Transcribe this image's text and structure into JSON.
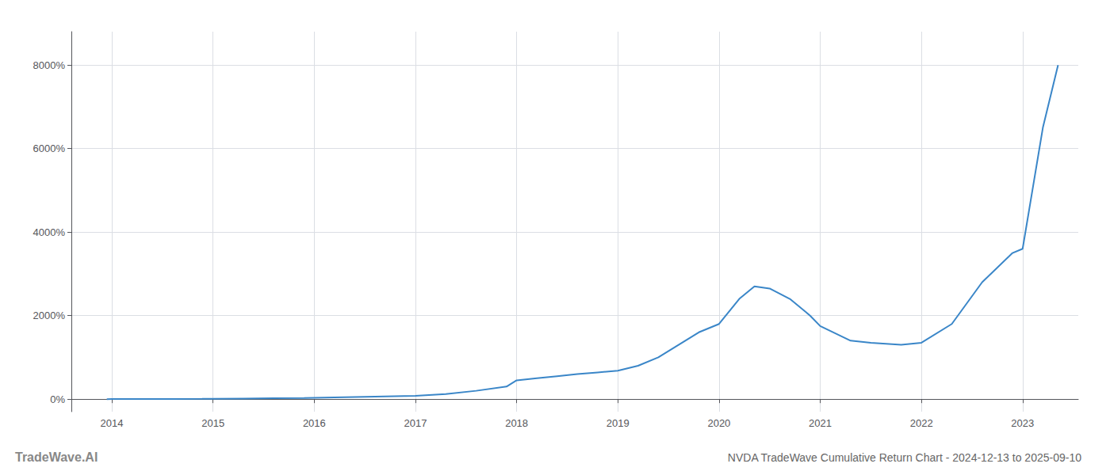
{
  "chart_data": {
    "type": "line",
    "title": "NVDA TradeWave Cumulative Return Chart - 2024-12-13 to 2025-09-10",
    "annotations": [
      "TradeWave.AI"
    ],
    "color": "#3a86c8",
    "grid": true,
    "x": [
      2013.95,
      2014.0,
      2014.3,
      2014.6,
      2014.9,
      2015.0,
      2015.3,
      2015.6,
      2015.9,
      2016.0,
      2016.3,
      2016.6,
      2016.9,
      2017.0,
      2017.3,
      2017.6,
      2017.9,
      2018.0,
      2018.2,
      2018.4,
      2018.6,
      2018.8,
      2019.0,
      2019.2,
      2019.4,
      2019.6,
      2019.8,
      2020.0,
      2020.2,
      2020.35,
      2020.5,
      2020.7,
      2020.9,
      2021.0,
      2021.3,
      2021.5,
      2021.8,
      2022.0,
      2022.3,
      2022.6,
      2022.9,
      2023.0,
      2023.2,
      2023.35
    ],
    "values": [
      0,
      1,
      3,
      5,
      8,
      10,
      15,
      20,
      25,
      30,
      45,
      60,
      75,
      80,
      120,
      200,
      300,
      450,
      500,
      550,
      600,
      640,
      680,
      800,
      1000,
      1300,
      1600,
      1800,
      2400,
      2700,
      2650,
      2400,
      2000,
      1750,
      1400,
      1350,
      1300,
      1350,
      1800,
      2800,
      3500,
      3600,
      6500,
      8000
    ],
    "xlim": [
      2013.6,
      2023.55
    ],
    "xticks": [
      2014,
      2015,
      2016,
      2017,
      2018,
      2019,
      2020,
      2021,
      2022,
      2023
    ],
    "ylim": [
      -300,
      8800
    ],
    "yticks": [
      {
        "value": 0,
        "label": "0%"
      },
      {
        "value": 2000,
        "label": "2000%"
      },
      {
        "value": 4000,
        "label": "4000%"
      },
      {
        "value": 6000,
        "label": "6000%"
      },
      {
        "value": 8000,
        "label": "8000%"
      }
    ]
  }
}
